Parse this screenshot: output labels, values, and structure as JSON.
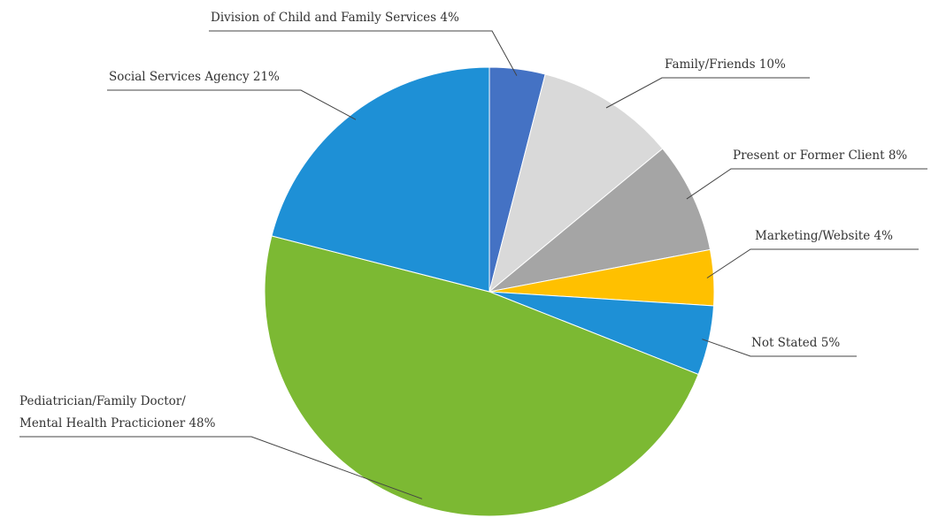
{
  "chart_data": {
    "type": "pie",
    "title": "",
    "slices": [
      {
        "label": "Division of Child and Family Services 4%",
        "value": 4,
        "color": "#4472c4"
      },
      {
        "label": "Family/Friends 10%",
        "value": 10,
        "color": "#d9d9d9"
      },
      {
        "label": "Present or Former Client 8%",
        "value": 8,
        "color": "#a5a5a5"
      },
      {
        "label": "Marketing/Website 4%",
        "value": 4,
        "color": "#ffc000"
      },
      {
        "label": "Not Stated 5%",
        "value": 5,
        "color": "#1e90d6"
      },
      {
        "label": "Pediatrician/Family Doctor/ Mental Health Practicioner 48%",
        "lines": [
          "Pediatrician/Family Doctor/",
          "Mental Health Practicioner 48%"
        ],
        "value": 48,
        "color": "#7cb933"
      },
      {
        "label": "Social Services Agency 21%",
        "value": 21,
        "color": "#1e90d6"
      }
    ],
    "start_angle": "12 o'clock",
    "direction": "clockwise",
    "legend": "none"
  }
}
